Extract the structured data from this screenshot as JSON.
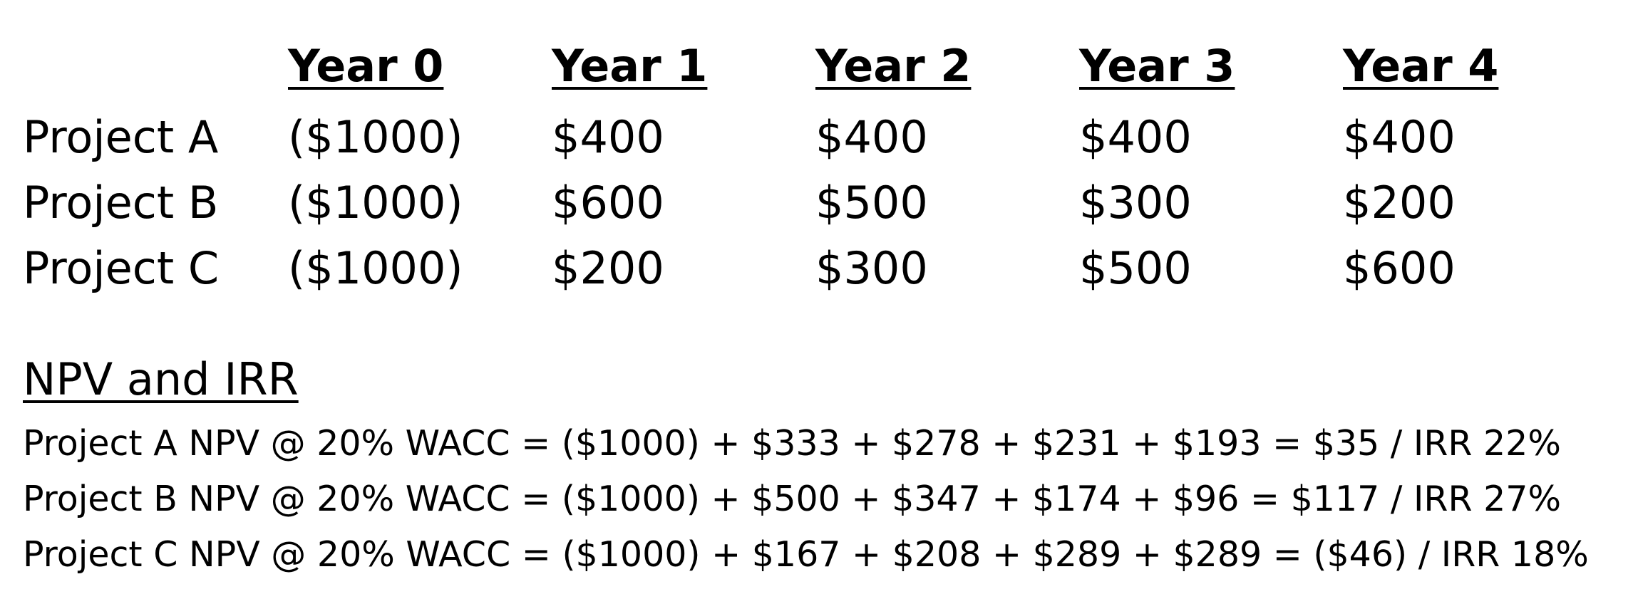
{
  "table": {
    "headers": [
      "Year 0",
      "Year 1",
      "Year 2",
      "Year 3",
      "Year 4"
    ],
    "rows": [
      {
        "label": "Project A",
        "values": [
          "($1000)",
          "$400",
          "$400",
          "$400",
          "$400"
        ]
      },
      {
        "label": "Project B",
        "values": [
          "($1000)",
          "$600",
          "$500",
          "$300",
          "$200"
        ]
      },
      {
        "label": "Project C",
        "values": [
          "($1000)",
          "$200",
          "$300",
          "$500",
          "$600"
        ]
      }
    ]
  },
  "npv_section": {
    "title": "NPV and IRR",
    "lines": [
      "Project A NPV @ 20% WACC = ($1000) + $333 + $278 + $231 + $193 = $35 / IRR 22%",
      "Project B NPV @ 20% WACC = ($1000) + $500 + $347 + $174 + $96 = $117 / IRR 27%",
      "Project C NPV @ 20% WACC = ($1000) + $167 + $208 + $289 + $289 = ($46) / IRR 18%"
    ]
  }
}
